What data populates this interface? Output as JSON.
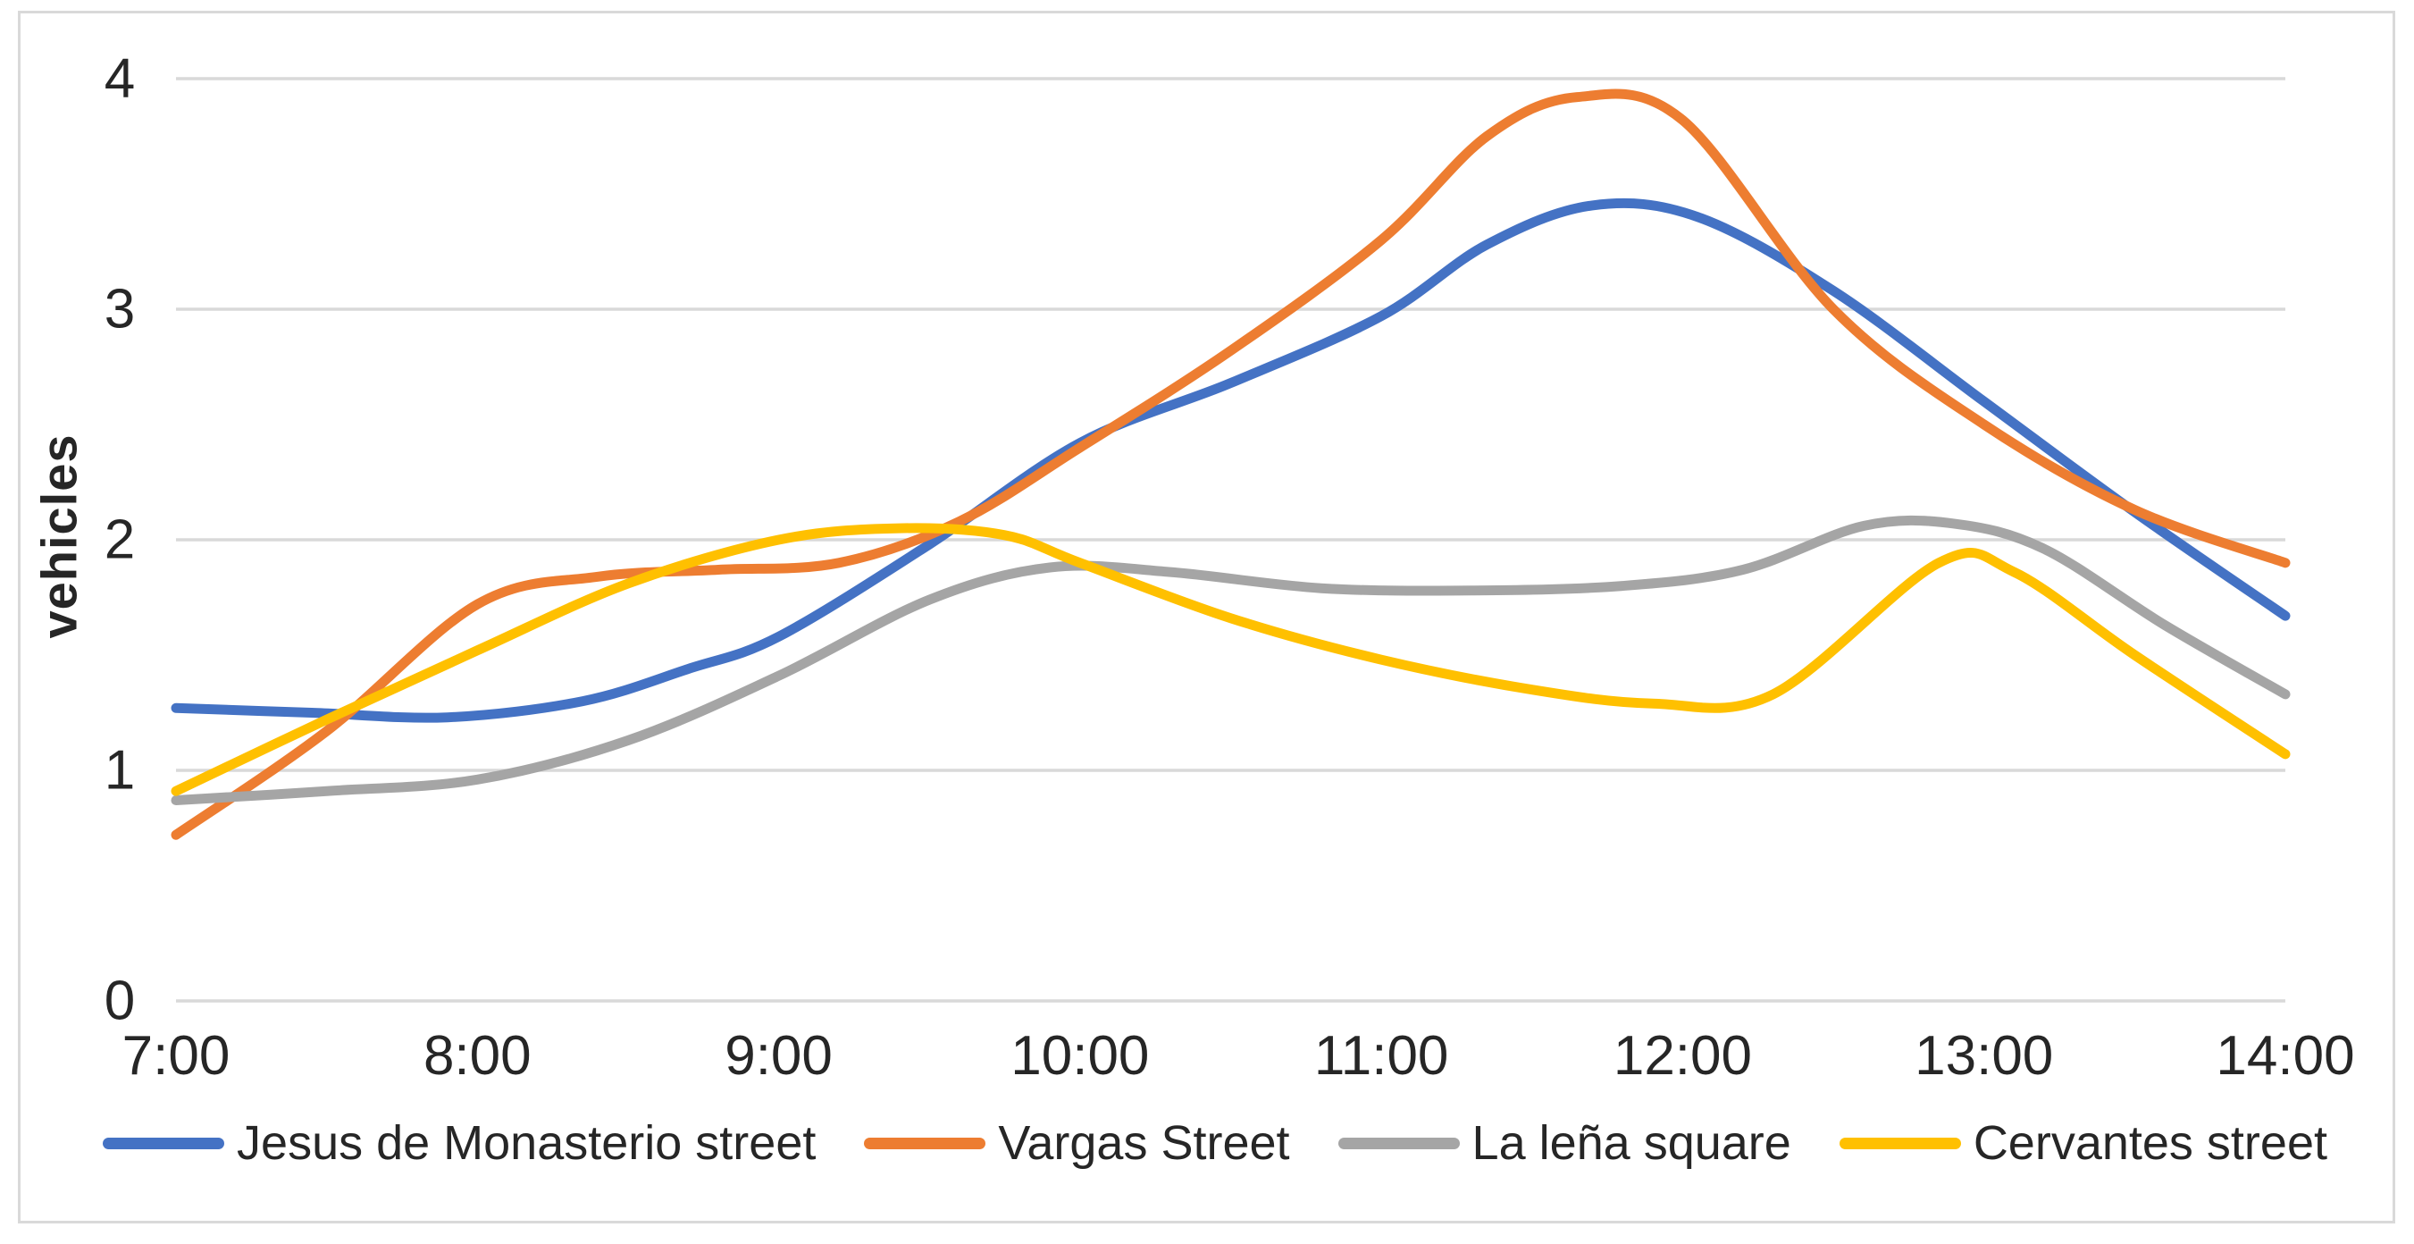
{
  "chart_data": {
    "type": "line",
    "title": "",
    "xlabel": "",
    "ylabel": "vehicles",
    "ylim": [
      0,
      4
    ],
    "y_ticks": [
      4,
      3,
      2,
      1,
      0
    ],
    "categories": [
      "7:00",
      "8:00",
      "9:00",
      "10:00",
      "11:00",
      "12:00",
      "13:00",
      "14:00"
    ],
    "grid": "horizontal gridlines only",
    "legend_position": "bottom",
    "line_smoothing": true,
    "colors": {
      "gridline": "#d9d9d9",
      "chart_border": "#d9d9d9",
      "text": "#262626"
    },
    "series": [
      {
        "name": "Jesus de Monasterio street",
        "color": "#4472C4",
        "values": [
          1.27,
          1.25,
          1.58,
          2.42,
          2.97,
          3.4,
          2.6,
          1.67
        ],
        "smooth_points": [
          [
            7,
            1.27
          ],
          [
            7.45,
            1.25
          ],
          [
            7.9,
            1.23
          ],
          [
            8.35,
            1.3
          ],
          [
            8.7,
            1.44
          ],
          [
            9,
            1.58
          ],
          [
            9.5,
            1.98
          ],
          [
            10,
            2.42
          ],
          [
            10.5,
            2.68
          ],
          [
            11,
            2.97
          ],
          [
            11.35,
            3.28
          ],
          [
            11.7,
            3.45
          ],
          [
            12.05,
            3.4
          ],
          [
            12.5,
            3.08
          ],
          [
            13,
            2.6
          ],
          [
            13.5,
            2.12
          ],
          [
            14,
            1.67
          ]
        ]
      },
      {
        "name": "Vargas Street",
        "color": "#ED7D31",
        "values": [
          0.72,
          1.72,
          1.88,
          2.4,
          3.3,
          3.86,
          2.5,
          1.9
        ],
        "smooth_points": [
          [
            7,
            0.72
          ],
          [
            7.5,
            1.17
          ],
          [
            8,
            1.72
          ],
          [
            8.4,
            1.84
          ],
          [
            8.8,
            1.87
          ],
          [
            9.2,
            1.9
          ],
          [
            9.6,
            2.08
          ],
          [
            10,
            2.4
          ],
          [
            10.5,
            2.82
          ],
          [
            11,
            3.3
          ],
          [
            11.35,
            3.75
          ],
          [
            11.65,
            3.92
          ],
          [
            12,
            3.82
          ],
          [
            12.5,
            3.0
          ],
          [
            13,
            2.5
          ],
          [
            13.5,
            2.13
          ],
          [
            14,
            1.9
          ]
        ]
      },
      {
        "name": "La leña square",
        "color": "#A5A5A5",
        "values": [
          0.87,
          0.96,
          1.41,
          1.88,
          1.78,
          1.81,
          2.03,
          1.33
        ],
        "smooth_points": [
          [
            7,
            0.87
          ],
          [
            7.5,
            0.91
          ],
          [
            8,
            0.96
          ],
          [
            8.5,
            1.13
          ],
          [
            9,
            1.41
          ],
          [
            9.5,
            1.74
          ],
          [
            9.9,
            1.88
          ],
          [
            10.3,
            1.86
          ],
          [
            10.8,
            1.79
          ],
          [
            11.3,
            1.78
          ],
          [
            11.8,
            1.8
          ],
          [
            12.2,
            1.87
          ],
          [
            12.6,
            2.06
          ],
          [
            12.9,
            2.07
          ],
          [
            13.2,
            1.96
          ],
          [
            13.6,
            1.63
          ],
          [
            14,
            1.33
          ]
        ]
      },
      {
        "name": "Cervantes street",
        "color": "#FFC000",
        "values": [
          0.91,
          1.52,
          2.0,
          1.9,
          1.48,
          1.29,
          1.9,
          1.07
        ],
        "smooth_points": [
          [
            7,
            0.91
          ],
          [
            7.5,
            1.22
          ],
          [
            8,
            1.52
          ],
          [
            8.5,
            1.81
          ],
          [
            9,
            2.0
          ],
          [
            9.4,
            2.05
          ],
          [
            9.75,
            2.02
          ],
          [
            10,
            1.9
          ],
          [
            10.5,
            1.66
          ],
          [
            11,
            1.48
          ],
          [
            11.5,
            1.35
          ],
          [
            11.9,
            1.29
          ],
          [
            12.3,
            1.33
          ],
          [
            12.85,
            1.9
          ],
          [
            13.1,
            1.86
          ],
          [
            13.5,
            1.5
          ],
          [
            14,
            1.07
          ]
        ]
      }
    ]
  }
}
